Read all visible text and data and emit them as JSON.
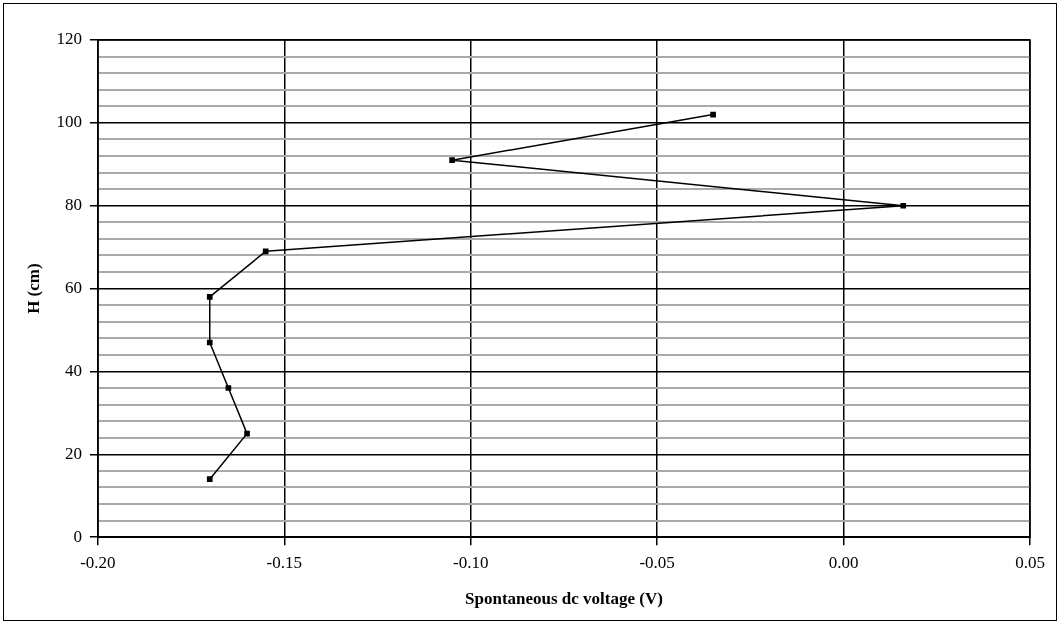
{
  "chart_data": {
    "type": "line",
    "xlabel": "Spontaneous dc voltage (V)",
    "ylabel": "H (cm)",
    "x": [
      -0.035,
      -0.105,
      0.016,
      -0.155,
      -0.17,
      -0.17,
      -0.165,
      -0.16,
      -0.17
    ],
    "series": [
      {
        "color": "#000000",
        "values": [
          102,
          91,
          80,
          69,
          58,
          47,
          36,
          25,
          14
        ]
      }
    ],
    "xlim": [
      -0.2,
      0.05
    ],
    "xticks": [
      {
        "value": -0.2,
        "label": "-0.20"
      },
      {
        "value": -0.15,
        "label": "-0.15"
      },
      {
        "value": -0.1,
        "label": "-0.10"
      },
      {
        "value": -0.05,
        "label": "-0.05"
      },
      {
        "value": 0,
        "label": "0.00"
      },
      {
        "value": 0.05,
        "label": "0.05"
      }
    ],
    "ylim": [
      0,
      120
    ],
    "yticks": [
      0,
      {
        "value": 4,
        "label": null
      },
      {
        "value": 8,
        "label": null
      },
      {
        "value": 12,
        "label": null
      },
      {
        "value": 16,
        "label": null
      },
      20,
      {
        "value": 24,
        "label": null
      },
      {
        "value": 28,
        "label": null
      },
      {
        "value": 32,
        "label": null
      },
      {
        "value": 36,
        "label": null
      },
      40,
      {
        "value": 44,
        "label": null
      },
      {
        "value": 48,
        "label": null
      },
      {
        "value": 52,
        "label": null
      },
      {
        "value": 56,
        "label": null
      },
      60,
      {
        "value": 64,
        "label": null
      },
      {
        "value": 68,
        "label": null
      },
      {
        "value": 72,
        "label": null
      },
      {
        "value": 76,
        "label": null
      },
      80,
      {
        "value": 84,
        "label": null
      },
      {
        "value": 88,
        "label": null
      },
      {
        "value": 92,
        "label": null
      },
      {
        "value": 96,
        "label": null
      },
      100,
      {
        "value": 104,
        "label": null
      },
      {
        "value": 108,
        "label": null
      },
      {
        "value": 112,
        "label": null
      },
      {
        "value": 116,
        "label": null
      },
      120
    ],
    "grid": true,
    "marker": "square",
    "line_style": "solid",
    "legend": false
  }
}
